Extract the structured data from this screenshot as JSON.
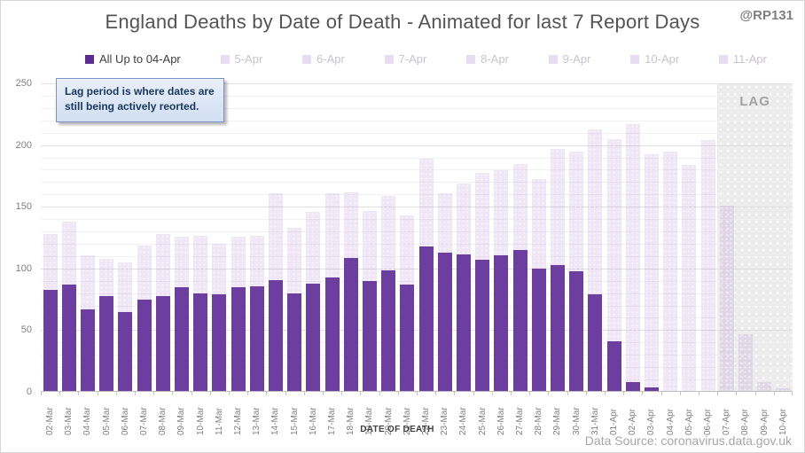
{
  "header": {
    "title": "England Deaths by Date of Death - Animated for last 7 Report Days",
    "watermark": "@RP131"
  },
  "legend": {
    "active_label": "All Up to 04-Apr",
    "faded_labels": [
      "5-Apr",
      "6-Apr",
      "7-Apr",
      "8-Apr",
      "9-Apr",
      "10-Apr",
      "11-Apr"
    ]
  },
  "tooltip": {
    "line1": "Lag period is where dates are",
    "line2": "still being actively reorted."
  },
  "footer": {
    "source": "Data Source: coronavirus.data.gov.uk"
  },
  "colors": {
    "bar_dark": "#6b3ea0",
    "bar_dark_swatch": "#5b2d8e",
    "bar_light_swatch": "#e7dcf1",
    "lag_band": "#ececec",
    "callout_border": "#7b93c5",
    "callout_text": "#17365d"
  },
  "chart_data": {
    "type": "bar",
    "title": "England Deaths by Date of Death - Animated for last 7 Report Days",
    "xlabel": "DATE OF DEATH",
    "ylabel": "",
    "ylim": [
      0,
      250
    ],
    "yticks": [
      0,
      50,
      100,
      150,
      200,
      250
    ],
    "grid": true,
    "legend_position": "top",
    "overlap": "bars overlap (not stacked); dark series drawn in front of light series",
    "categories": [
      "02-Mar",
      "03-Mar",
      "04-Mar",
      "05-Mar",
      "06-Mar",
      "07-Mar",
      "08-Mar",
      "09-Mar",
      "10-Mar",
      "11-Mar",
      "12-Mar",
      "13-Mar",
      "14-Mar",
      "15-Mar",
      "16-Mar",
      "17-Mar",
      "18-Mar",
      "19-Mar",
      "20-Mar",
      "21-Mar",
      "22-Mar",
      "23-Mar",
      "24-Mar",
      "25-Mar",
      "26-Mar",
      "27-Mar",
      "28-Mar",
      "29-Mar",
      "30-Mar",
      "31-Mar",
      "01-Apr",
      "02-Apr",
      "03-Apr",
      "04-Apr",
      "05-Apr",
      "06-Apr",
      "07-Apr",
      "08-Apr",
      "09-Apr",
      "10-Apr"
    ],
    "series": [
      {
        "name": "Latest report (11-Apr, shown faded)",
        "role": "light",
        "values": [
          127,
          137,
          110,
          107,
          104,
          118,
          127,
          125,
          126,
          119,
          125,
          126,
          160,
          132,
          145,
          160,
          161,
          146,
          158,
          142,
          188,
          160,
          168,
          177,
          179,
          184,
          172,
          196,
          194,
          212,
          204,
          216,
          192,
          194,
          183,
          203,
          150,
          46,
          7,
          2
        ]
      },
      {
        "name": "All Up to 04-Apr",
        "role": "dark",
        "values": [
          82,
          86,
          66,
          77,
          64,
          74,
          77,
          84,
          79,
          78,
          84,
          85,
          90,
          79,
          87,
          92,
          108,
          89,
          98,
          86,
          117,
          112,
          111,
          106,
          110,
          114,
          99,
          102,
          97,
          78,
          40,
          7,
          3,
          0,
          0,
          0,
          0,
          0,
          0,
          0
        ]
      }
    ],
    "lag": {
      "label": "LAG",
      "start_category": "07-Apr",
      "end_category": "10-Apr",
      "note": "shaded grey dotted band over last 4 dates"
    }
  }
}
